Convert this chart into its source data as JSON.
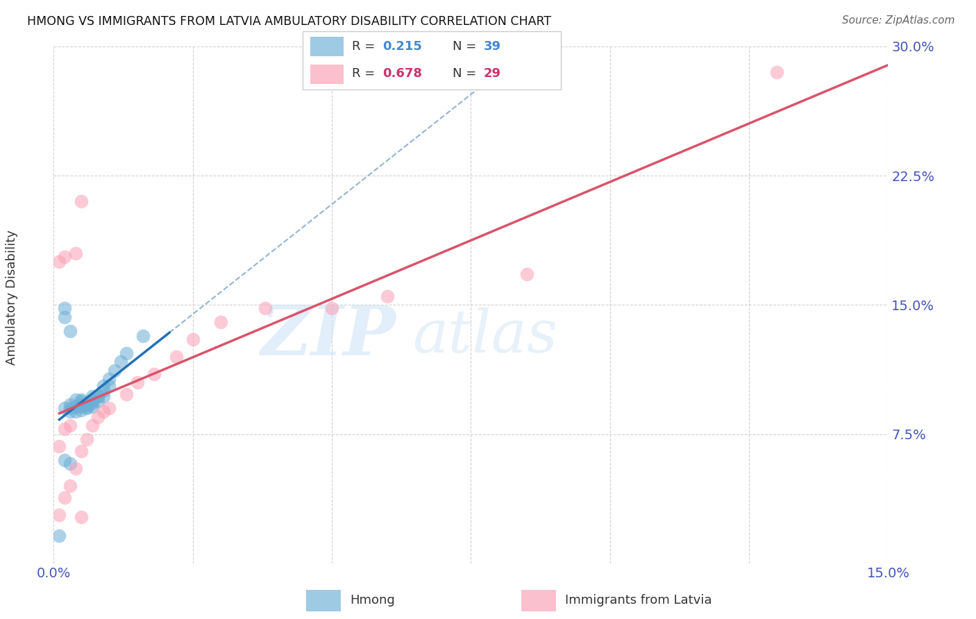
{
  "title": "HMONG VS IMMIGRANTS FROM LATVIA AMBULATORY DISABILITY CORRELATION CHART",
  "source": "Source: ZipAtlas.com",
  "ylabel": "Ambulatory Disability",
  "label1": "Hmong",
  "label2": "Immigrants from Latvia",
  "xlim": [
    0.0,
    0.15
  ],
  "ylim": [
    0.0,
    0.3
  ],
  "xtick_vals": [
    0.0,
    0.025,
    0.05,
    0.075,
    0.1,
    0.125,
    0.15
  ],
  "xtick_labels": [
    "0.0%",
    "",
    "",
    "",
    "",
    "",
    "15.0%"
  ],
  "ytick_vals": [
    0.0,
    0.075,
    0.15,
    0.225,
    0.3
  ],
  "ytick_labels": [
    "",
    "7.5%",
    "15.0%",
    "22.5%",
    "30.0%"
  ],
  "r1": "0.215",
  "n1": "39",
  "r2": "0.678",
  "n2": "29",
  "color_blue": "#6baed6",
  "color_pink": "#fa9fb5",
  "color_blue_line": "#2171b5",
  "color_pink_line": "#d9536a",
  "color_dashed": "#92b4d4",
  "watermark_zip": "ZIP",
  "watermark_atlas": "atlas",
  "hmong_x": [
    0.001,
    0.002,
    0.002,
    0.002,
    0.002,
    0.003,
    0.003,
    0.003,
    0.003,
    0.003,
    0.004,
    0.004,
    0.004,
    0.005,
    0.005,
    0.005,
    0.005,
    0.005,
    0.006,
    0.006,
    0.006,
    0.006,
    0.007,
    0.007,
    0.007,
    0.007,
    0.007,
    0.008,
    0.008,
    0.008,
    0.009,
    0.009,
    0.009,
    0.01,
    0.01,
    0.011,
    0.012,
    0.013,
    0.016
  ],
  "hmong_y": [
    0.016,
    0.09,
    0.143,
    0.148,
    0.06,
    0.058,
    0.09,
    0.088,
    0.092,
    0.135,
    0.088,
    0.091,
    0.095,
    0.089,
    0.091,
    0.092,
    0.094,
    0.095,
    0.09,
    0.092,
    0.093,
    0.091,
    0.094,
    0.095,
    0.097,
    0.091,
    0.093,
    0.094,
    0.097,
    0.097,
    0.097,
    0.1,
    0.103,
    0.103,
    0.107,
    0.112,
    0.117,
    0.122,
    0.132
  ],
  "latvia_x": [
    0.001,
    0.001,
    0.001,
    0.002,
    0.002,
    0.002,
    0.003,
    0.003,
    0.004,
    0.004,
    0.005,
    0.005,
    0.006,
    0.007,
    0.008,
    0.009,
    0.01,
    0.013,
    0.018,
    0.022,
    0.025,
    0.038,
    0.05,
    0.06,
    0.085,
    0.13,
    0.015,
    0.03,
    0.005
  ],
  "latvia_y": [
    0.028,
    0.068,
    0.175,
    0.038,
    0.078,
    0.178,
    0.045,
    0.08,
    0.055,
    0.18,
    0.065,
    0.21,
    0.072,
    0.08,
    0.085,
    0.088,
    0.09,
    0.098,
    0.11,
    0.12,
    0.13,
    0.148,
    0.148,
    0.155,
    0.168,
    0.285,
    0.105,
    0.14,
    0.027
  ]
}
